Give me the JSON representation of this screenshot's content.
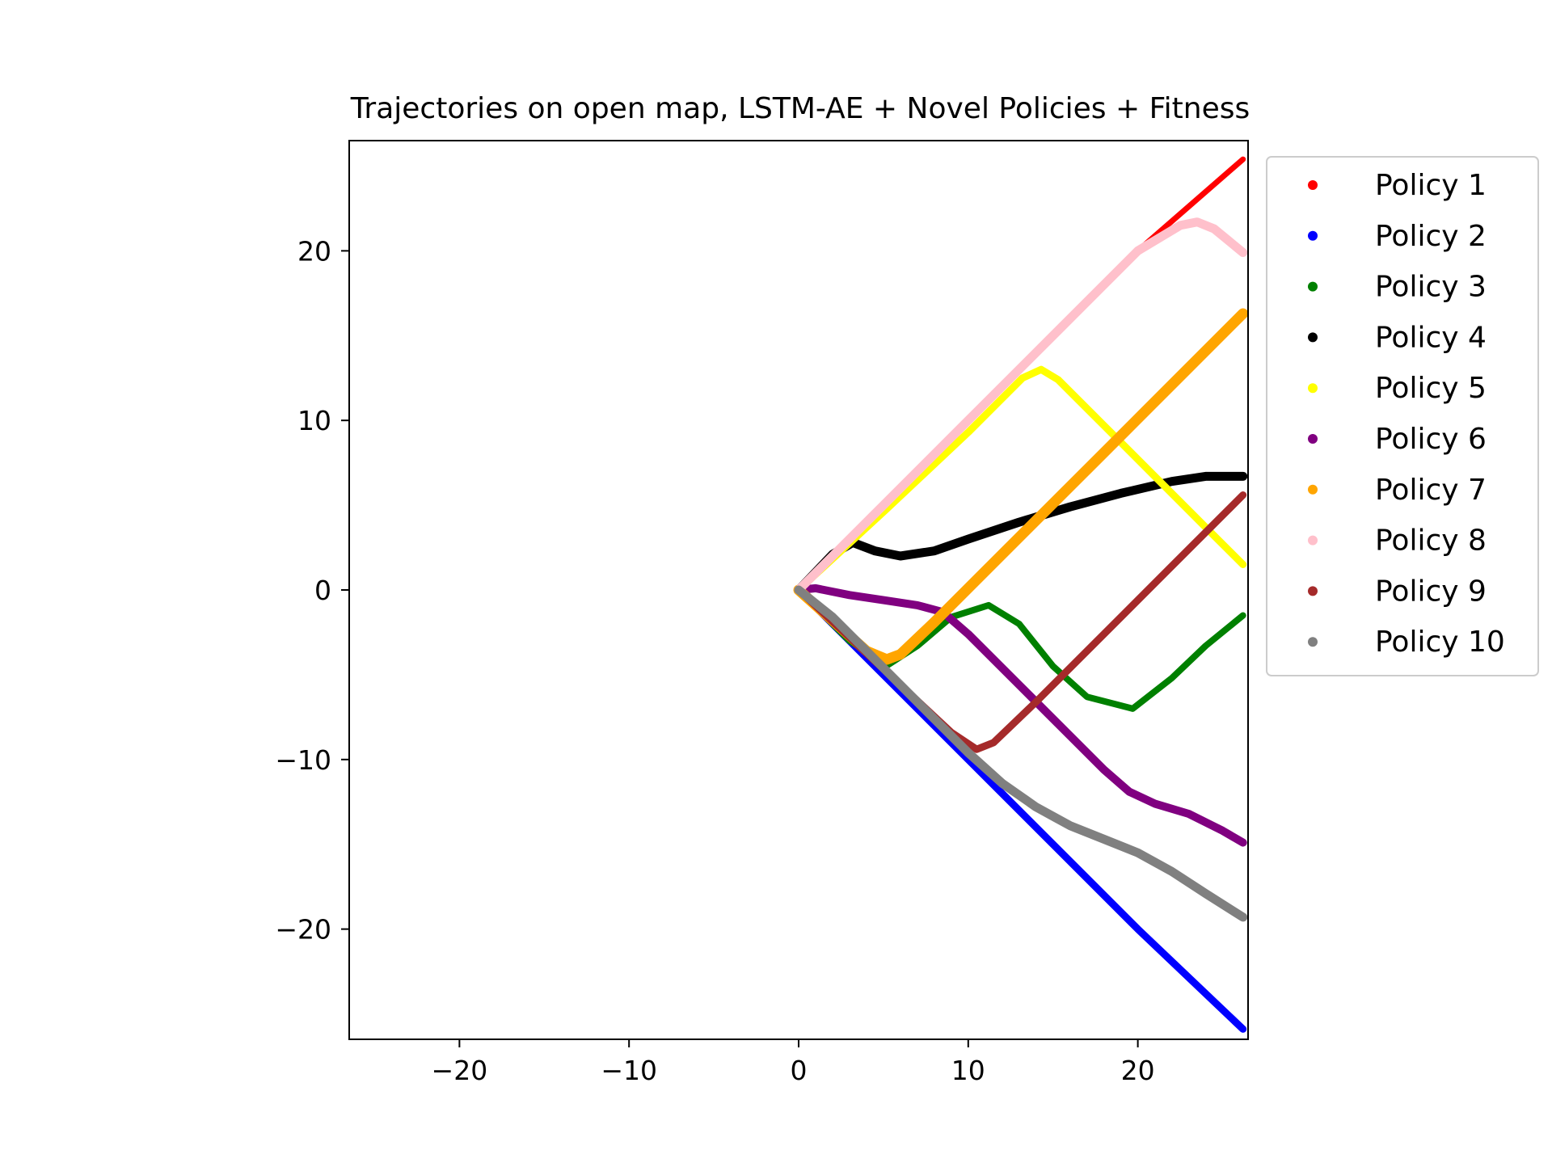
{
  "chart_data": {
    "type": "line",
    "title": "Trajectories on open map, LSTM-AE + Novel Policies + Fitness",
    "xlabel": "",
    "ylabel": "",
    "xlim": [
      -26.5,
      26.5
    ],
    "ylim": [
      -26.5,
      26.5
    ],
    "xticks": [
      -20,
      -10,
      0,
      10,
      20
    ],
    "yticks": [
      -20,
      -10,
      0,
      10,
      20
    ],
    "xtick_labels": [
      "−20",
      "−10",
      "0",
      "10",
      "20"
    ],
    "ytick_labels": [
      "−20",
      "−10",
      "0",
      "10",
      "20"
    ],
    "grid": false,
    "legend_position": "outside-right-top",
    "series": [
      {
        "name": "Policy 1",
        "color": "#ff0000",
        "x": [
          0,
          5,
          10,
          15,
          20,
          26.2
        ],
        "y": [
          0,
          5,
          10,
          15,
          20,
          25.4
        ]
      },
      {
        "name": "Policy 2",
        "color": "#0000ff",
        "x": [
          0,
          5,
          10,
          15,
          20,
          26.2
        ],
        "y": [
          0,
          -5,
          -10,
          -15,
          -20,
          -25.9
        ]
      },
      {
        "name": "Policy 3",
        "color": "#008000",
        "x": [
          0,
          3,
          5.3,
          7,
          9,
          11.2,
          13,
          15,
          17,
          19.7,
          22,
          24,
          26.2
        ],
        "y": [
          0,
          -3,
          -4.4,
          -3.3,
          -1.6,
          -0.9,
          -2.0,
          -4.5,
          -6.3,
          -7.0,
          -5.2,
          -3.3,
          -1.5
        ]
      },
      {
        "name": "Policy 4",
        "color": "#000000",
        "x": [
          0,
          2,
          3.2,
          4.5,
          6,
          8,
          10,
          13,
          16,
          19,
          22,
          24,
          26.2
        ],
        "y": [
          0,
          2.1,
          2.8,
          2.3,
          2.0,
          2.3,
          3.0,
          4.0,
          4.9,
          5.7,
          6.4,
          6.7,
          6.7
        ]
      },
      {
        "name": "Policy 5",
        "color": "#ffff00",
        "x": [
          0,
          5,
          10,
          13.2,
          14.3,
          15.3,
          18,
          21,
          24,
          26.2
        ],
        "y": [
          0,
          4.6,
          9.3,
          12.5,
          13.0,
          12.4,
          9.7,
          6.7,
          3.7,
          1.5
        ]
      },
      {
        "name": "Policy 6",
        "color": "#800080",
        "x": [
          0,
          1,
          3,
          5,
          7,
          8.5,
          10,
          13,
          16,
          18,
          19.5,
          21,
          23,
          25,
          26.2
        ],
        "y": [
          0,
          0.1,
          -0.3,
          -0.6,
          -0.9,
          -1.3,
          -2.6,
          -5.6,
          -8.6,
          -10.6,
          -11.9,
          -12.6,
          -13.2,
          -14.2,
          -14.9
        ]
      },
      {
        "name": "Policy 7",
        "color": "#ffa500",
        "x": [
          0,
          2,
          4,
          5.2,
          6,
          8,
          10,
          14,
          18,
          22,
          26.2
        ],
        "y": [
          0,
          -1.8,
          -3.6,
          -4.1,
          -3.8,
          -1.9,
          0.1,
          4.1,
          8.1,
          12.1,
          16.3
        ]
      },
      {
        "name": "Policy 8",
        "color": "#ffc0cb",
        "x": [
          0,
          5,
          10,
          15,
          20,
          22.5,
          23.5,
          24.5,
          26.2
        ],
        "y": [
          0,
          5,
          10,
          15,
          20,
          21.5,
          21.7,
          21.3,
          19.9
        ]
      },
      {
        "name": "Policy 9",
        "color": "#a52a2a",
        "x": [
          0,
          3,
          6,
          9,
          10.5,
          11.5,
          14,
          18,
          22,
          26.2
        ],
        "y": [
          0,
          -2.8,
          -5.6,
          -8.4,
          -9.4,
          -9.0,
          -6.6,
          -2.6,
          1.4,
          5.6
        ]
      },
      {
        "name": "Policy 10",
        "color": "#808080",
        "x": [
          0,
          2,
          5,
          8,
          10,
          12,
          14,
          16,
          18,
          20,
          22,
          24,
          26.2
        ],
        "y": [
          0,
          -1.6,
          -4.6,
          -7.6,
          -9.6,
          -11.4,
          -12.8,
          -13.9,
          -14.7,
          -15.5,
          -16.6,
          -17.9,
          -19.3
        ]
      }
    ]
  }
}
